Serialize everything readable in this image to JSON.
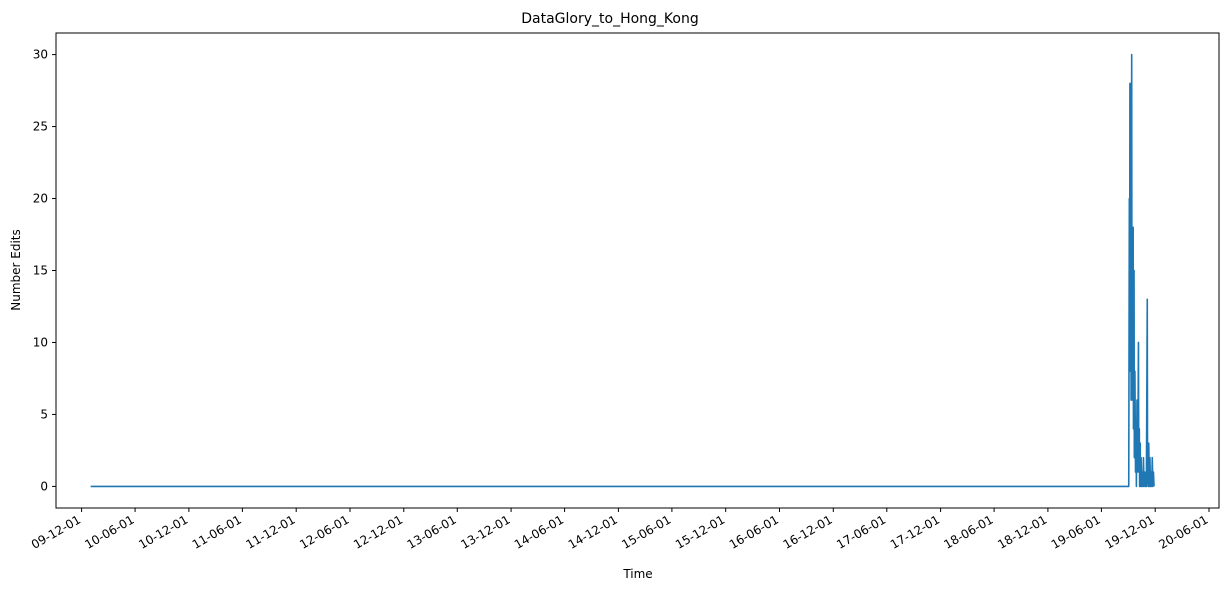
{
  "chart_data": {
    "type": "line",
    "title": "DataGlory_to_Hong_Kong",
    "xlabel": "Time",
    "ylabel": "Number Edits",
    "x_tick_labels": [
      "09-12-01",
      "10-06-01",
      "10-12-01",
      "11-06-01",
      "11-12-01",
      "12-06-01",
      "12-12-01",
      "13-06-01",
      "13-12-01",
      "14-06-01",
      "14-12-01",
      "15-06-01",
      "15-12-01",
      "16-06-01",
      "16-12-01",
      "17-06-01",
      "17-12-01",
      "18-06-01",
      "18-12-01",
      "19-06-01",
      "19-12-01",
      "20-06-01"
    ],
    "x_tick_dates": [
      "2009-12-01",
      "2010-06-01",
      "2010-12-01",
      "2011-06-01",
      "2011-12-01",
      "2012-06-01",
      "2012-12-01",
      "2013-06-01",
      "2013-12-01",
      "2014-06-01",
      "2014-12-01",
      "2015-06-01",
      "2015-12-01",
      "2016-06-01",
      "2016-12-01",
      "2017-06-01",
      "2017-12-01",
      "2018-06-01",
      "2018-12-01",
      "2019-06-01",
      "2019-12-01",
      "2020-06-01"
    ],
    "xlim": [
      "2009-09-05",
      "2020-07-05"
    ],
    "ylim": [
      -1.5,
      31.5
    ],
    "y_ticks": [
      0,
      5,
      10,
      15,
      20,
      25,
      30
    ],
    "grid": false,
    "series": [
      {
        "color": "#1f77b4",
        "points": [
          [
            "2010-01-01",
            0
          ],
          [
            "2019-09-02",
            0
          ],
          [
            "2019-09-04",
            20
          ],
          [
            "2019-09-05",
            8
          ],
          [
            "2019-09-06",
            28
          ],
          [
            "2019-09-07",
            12
          ],
          [
            "2019-09-09",
            28
          ],
          [
            "2019-09-10",
            6
          ],
          [
            "2019-09-12",
            30
          ],
          [
            "2019-09-13",
            6
          ],
          [
            "2019-09-15",
            10
          ],
          [
            "2019-09-17",
            18
          ],
          [
            "2019-09-18",
            4
          ],
          [
            "2019-09-20",
            15
          ],
          [
            "2019-09-21",
            2
          ],
          [
            "2019-09-23",
            8
          ],
          [
            "2019-09-25",
            1
          ],
          [
            "2019-09-27",
            4
          ],
          [
            "2019-09-28",
            0
          ],
          [
            "2019-09-30",
            6
          ],
          [
            "2019-10-01",
            1
          ],
          [
            "2019-10-03",
            2
          ],
          [
            "2019-10-05",
            10
          ],
          [
            "2019-10-06",
            1
          ],
          [
            "2019-10-08",
            4
          ],
          [
            "2019-10-09",
            0
          ],
          [
            "2019-10-11",
            3
          ],
          [
            "2019-10-12",
            0
          ],
          [
            "2019-10-14",
            2
          ],
          [
            "2019-10-16",
            0
          ],
          [
            "2019-10-18",
            1
          ],
          [
            "2019-10-20",
            0
          ],
          [
            "2019-10-22",
            2
          ],
          [
            "2019-10-24",
            0
          ],
          [
            "2019-10-27",
            1
          ],
          [
            "2019-10-29",
            0
          ],
          [
            "2019-11-01",
            0
          ],
          [
            "2019-11-04",
            13
          ],
          [
            "2019-11-05",
            1
          ],
          [
            "2019-11-07",
            0
          ],
          [
            "2019-11-09",
            3
          ],
          [
            "2019-11-11",
            0
          ],
          [
            "2019-11-13",
            2
          ],
          [
            "2019-11-15",
            0
          ],
          [
            "2019-11-17",
            1
          ],
          [
            "2019-11-19",
            0
          ],
          [
            "2019-11-21",
            2
          ],
          [
            "2019-11-23",
            0
          ],
          [
            "2019-11-25",
            1
          ],
          [
            "2019-11-27",
            0
          ]
        ]
      }
    ]
  }
}
